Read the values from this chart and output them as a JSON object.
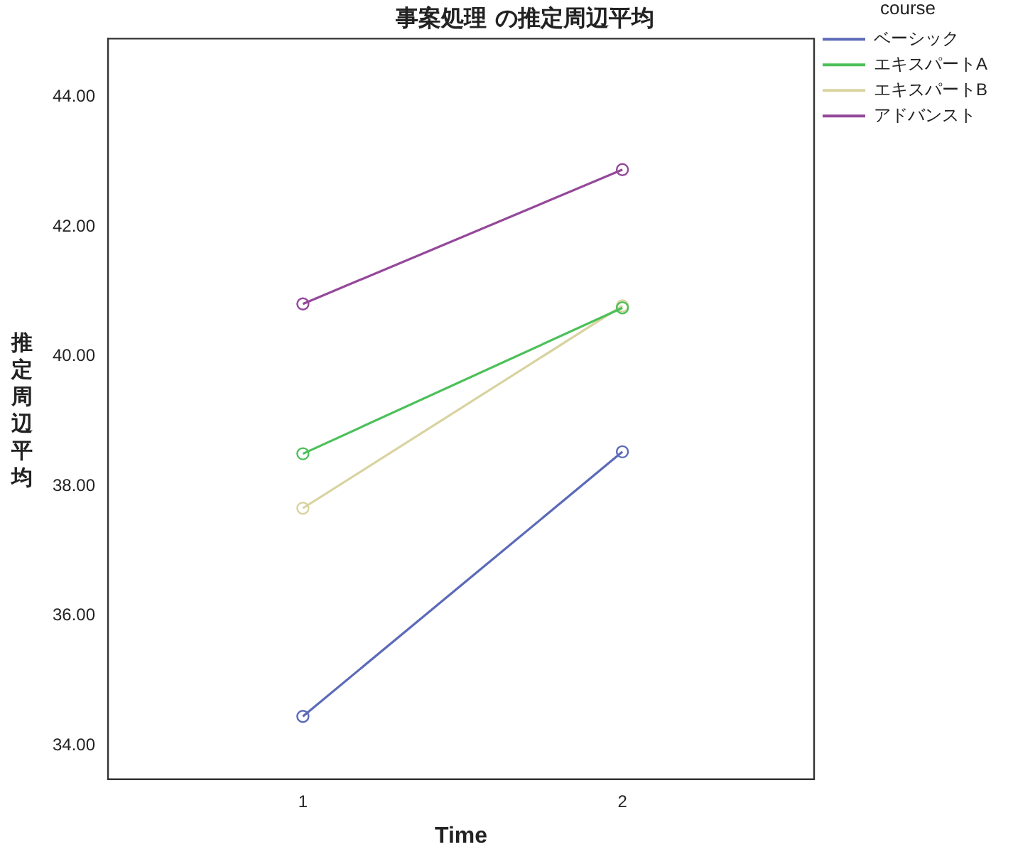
{
  "chart_data": {
    "type": "line",
    "title": "事案処理 の推定周辺平均",
    "xlabel": "Time",
    "ylabel": "推定周辺平均",
    "legend_title": "course",
    "x": [
      1,
      2
    ],
    "series": [
      {
        "name": "ベーシック",
        "color": "#5b6ab8",
        "values": [
          34.45,
          38.53
        ]
      },
      {
        "name": "エキスパートA",
        "color": "#4cc05a",
        "values": [
          38.5,
          40.75
        ]
      },
      {
        "name": "エキスパートB",
        "color": "#d9d3a0",
        "values": [
          37.66,
          40.78
        ]
      },
      {
        "name": "アドバンスト",
        "color": "#94489a",
        "values": [
          40.81,
          42.88
        ]
      }
    ],
    "xlim": [
      0.39,
      2.6
    ],
    "xticks": [
      1,
      2
    ],
    "ylim": [
      33.48,
      44.9
    ],
    "yticks": [
      {
        "value": 34,
        "label": "34.00"
      },
      {
        "value": 36,
        "label": "36.00"
      },
      {
        "value": 38,
        "label": "38.00"
      },
      {
        "value": 40,
        "label": "40.00"
      },
      {
        "value": 42,
        "label": "42.00"
      },
      {
        "value": 44,
        "label": "44.00"
      }
    ],
    "grid": false,
    "legend": "right",
    "marker": "circle",
    "line_style": "solid"
  }
}
